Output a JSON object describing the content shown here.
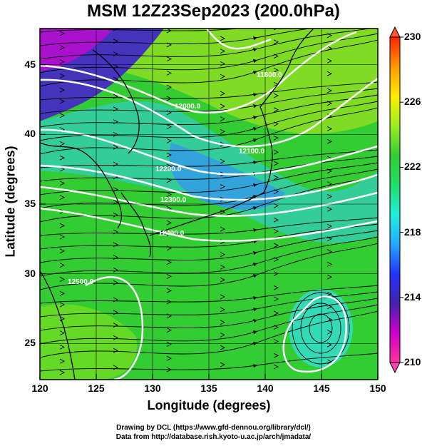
{
  "title": "MSM 12Z23Sep2023 (200.0hPa)",
  "xlabel": "Longitude (degrees)",
  "ylabel": "Latitude  (degrees)",
  "credits": [
    "Drawing by DCL (https://www.gfd-dennou.org/library/dcl/)",
    "Data from http://database.rish.kyoto-u.ac.jp/arch/jmadata/"
  ],
  "map": {
    "lon_range": [
      120,
      150
    ],
    "lat_range": [
      22.4,
      47.6
    ],
    "lon_ticks": [
      "120",
      "125",
      "130",
      "135",
      "140",
      "145",
      "150"
    ],
    "lat_ticks": [
      "25",
      "30",
      "35",
      "40",
      "45"
    ],
    "grid": true,
    "field": "temperature (shaded)",
    "vectors": "streamlines"
  },
  "colorbar": {
    "range": [
      210,
      230
    ],
    "ticks": [
      "210",
      "214",
      "218",
      "222",
      "226",
      "230"
    ],
    "colors": [
      "#ff3399",
      "#cc00cc",
      "#4422aa",
      "#2233ff",
      "#22aaff",
      "#22eedd",
      "#22dd66",
      "#33cc33",
      "#99ee22",
      "#ffee00",
      "#ff9900",
      "#ff2200"
    ]
  },
  "contour_labels": [
    "11800.0",
    "12000.0",
    "12100.0",
    "12200.0",
    "12300.0",
    "12400.0",
    "12500.0"
  ]
}
